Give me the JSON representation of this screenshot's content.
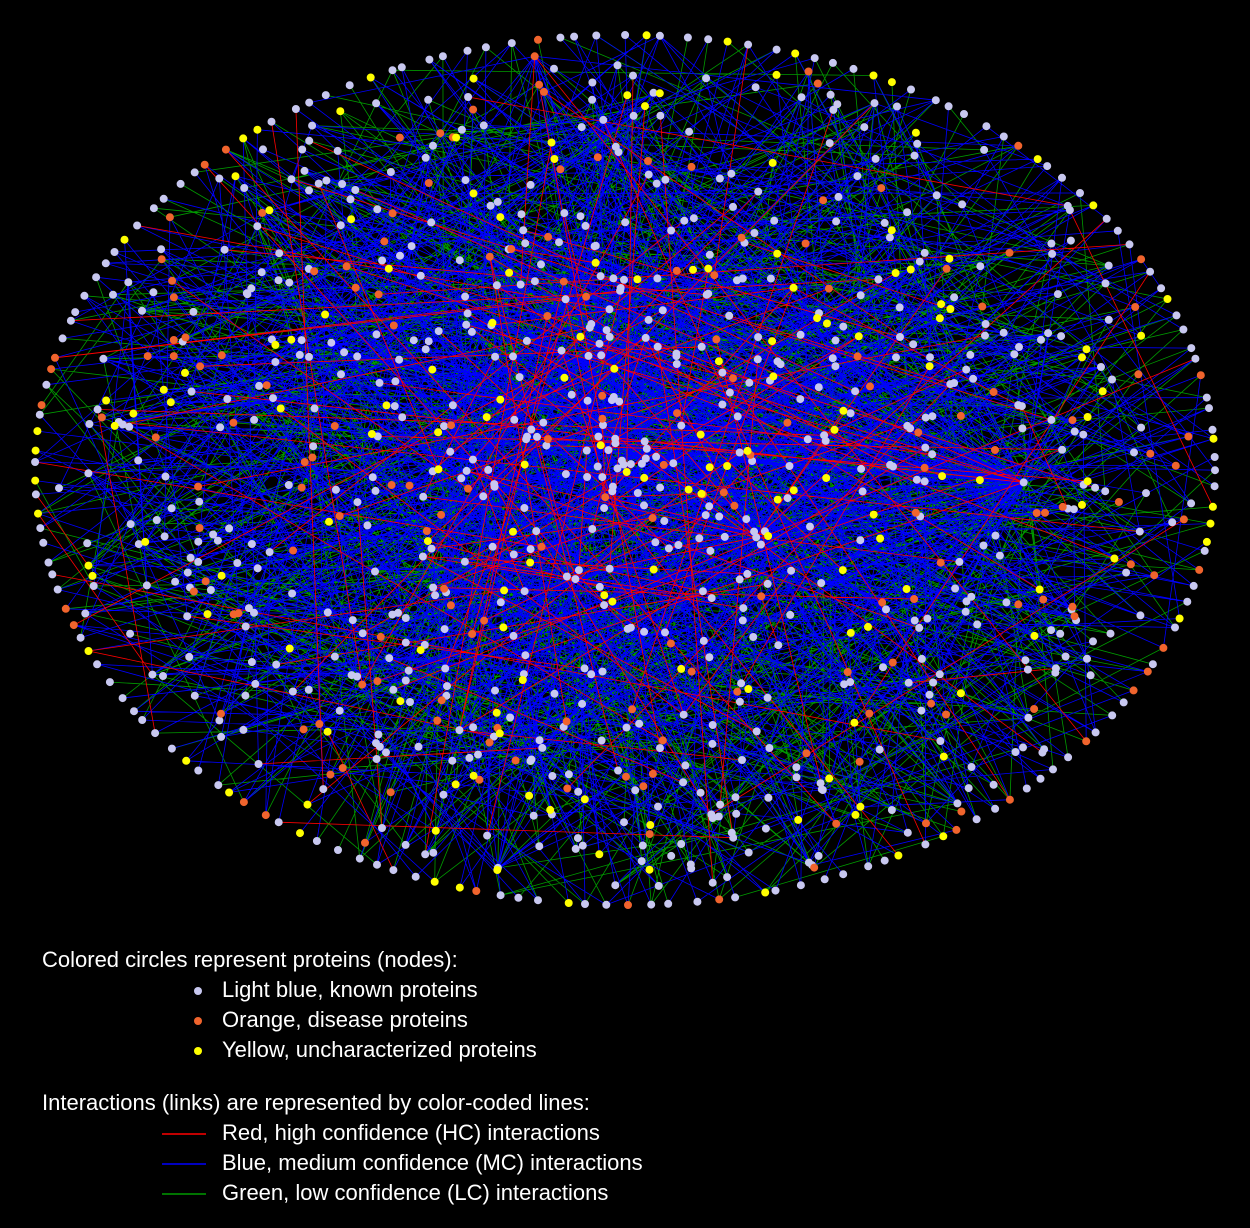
{
  "legend": {
    "nodes": {
      "heading": "Colored circles represent proteins (nodes):",
      "items": [
        {
          "label": "Light blue, known proteins",
          "color": "#c8c8f0"
        },
        {
          "label": "Orange, disease proteins",
          "color": "#f0642d"
        },
        {
          "label": "Yellow, uncharacterized proteins",
          "color": "#ffff00"
        }
      ]
    },
    "links": {
      "heading": "Interactions (links) are represented by color-coded lines:",
      "items": [
        {
          "label": "Red, high confidence (HC) interactions",
          "color": "#ff0000"
        },
        {
          "label": "Blue, medium confidence (MC) interactions",
          "color": "#0000ff"
        },
        {
          "label": "Green, low confidence (LC) interactions",
          "color": "#009a00"
        }
      ]
    }
  }
}
